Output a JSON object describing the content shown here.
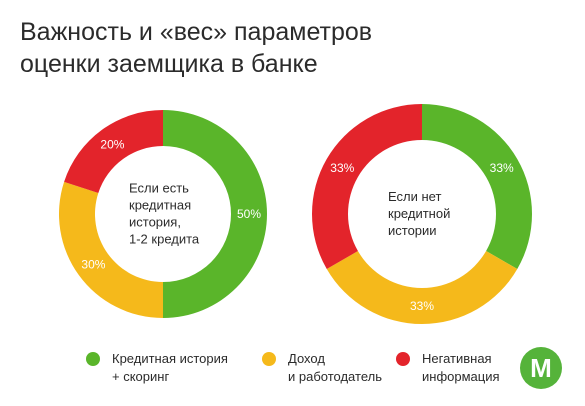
{
  "title": {
    "line1": "Важность и «вес» параметров",
    "line2": "оценки заемщика в банке"
  },
  "colors": {
    "green": "#5ab52a",
    "yellow": "#f5b91b",
    "red": "#e3242b",
    "logo_green": "#55b33a"
  },
  "chart_data": [
    {
      "type": "pie",
      "variant": "donut",
      "center_label": [
        "Если есть",
        "кредитная",
        "история,",
        "1-2 кредита"
      ],
      "slices": [
        {
          "category": "Кредитная история + скоринг",
          "value": 50,
          "label": "50%",
          "color": "#5ab52a"
        },
        {
          "category": "Доход и работодатель",
          "value": 30,
          "label": "30%",
          "color": "#f5b91b"
        },
        {
          "category": "Негативная информация",
          "value": 20,
          "label": "20%",
          "color": "#e3242b"
        }
      ]
    },
    {
      "type": "pie",
      "variant": "donut",
      "center_label": [
        "Если нет",
        "кредитной",
        "истории"
      ],
      "slices": [
        {
          "category": "Кредитная история + скоринг",
          "value": 33.33,
          "label": "33%",
          "color": "#5ab52a"
        },
        {
          "category": "Доход и работодатель",
          "value": 33.33,
          "label": "33%",
          "color": "#f5b91b"
        },
        {
          "category": "Негативная информация",
          "value": 33.34,
          "label": "33%",
          "color": "#e3242b"
        }
      ]
    }
  ],
  "legend": [
    {
      "lines": [
        "Кредитная история",
        "+ скоринг"
      ],
      "color": "#5ab52a"
    },
    {
      "lines": [
        "Доход",
        "и работодатель"
      ],
      "color": "#f5b91b"
    },
    {
      "lines": [
        "Негативная",
        "информация"
      ],
      "color": "#e3242b"
    }
  ],
  "logo": {
    "letter": "M",
    "icon": "brand-logo-icon"
  }
}
